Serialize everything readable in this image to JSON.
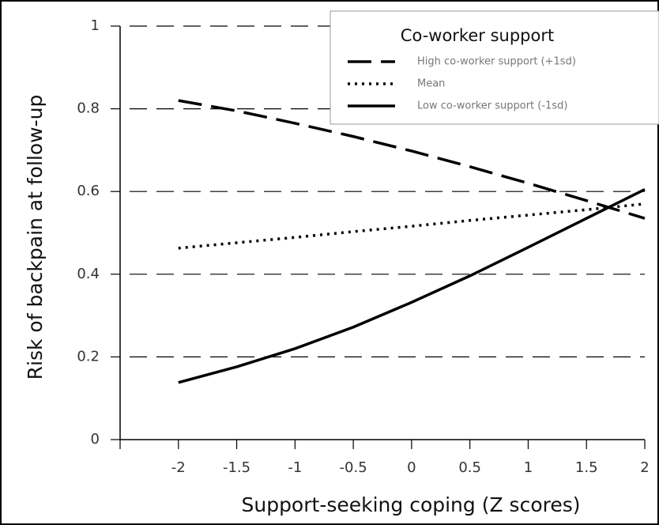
{
  "chart_data": {
    "type": "line",
    "xlabel": "Support-seeking coping (Z scores)",
    "ylabel": "Risk of  backpain at follow-up",
    "x": [
      -2,
      -1.5,
      -1,
      -0.5,
      0,
      0.5,
      1,
      1.5,
      2
    ],
    "series": [
      {
        "name": "High co-worker support (+1sd)",
        "color": "#000000",
        "linestyle": "dashed",
        "values": [
          0.82,
          0.795,
          0.765,
          0.733,
          0.698,
          0.66,
          0.62,
          0.578,
          0.535
        ]
      },
      {
        "name": "Mean",
        "color": "#000000",
        "linestyle": "dotted",
        "values": [
          0.463,
          0.476,
          0.489,
          0.503,
          0.516,
          0.53,
          0.543,
          0.556,
          0.57
        ]
      },
      {
        "name": "Low co-worker support (-1sd)",
        "color": "#000000",
        "linestyle": "solid",
        "values": [
          0.138,
          0.176,
          0.22,
          0.272,
          0.332,
          0.396,
          0.465,
          0.535,
          0.605
        ]
      }
    ],
    "legend_title": "Co-worker support",
    "legend_position": "upper right",
    "xlim": [
      -2.5,
      2
    ],
    "xticks": [
      -2,
      -1.5,
      -1,
      -0.5,
      0,
      0.5,
      1,
      1.5,
      2
    ],
    "ylim": [
      0,
      1
    ],
    "yticks": [
      0,
      0.2,
      0.4,
      0.6,
      0.8,
      1
    ],
    "grid": true
  }
}
